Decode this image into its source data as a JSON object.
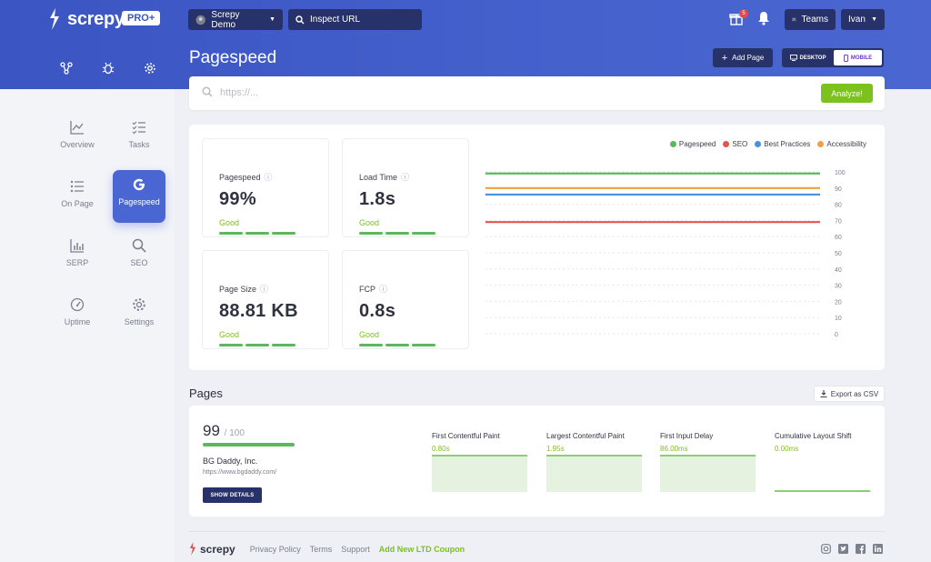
{
  "brand": {
    "name": "screpy",
    "plan": "PRO+"
  },
  "header": {
    "project": "Screpy Demo",
    "inspect_placeholder": "Inspect URL",
    "notifications_count": "5",
    "teams_label": "Teams",
    "user_label": "Ivan"
  },
  "page": {
    "title": "Pagespeed",
    "add_page": "Add Page",
    "device_desktop": "DESKTOP",
    "device_mobile": "MOBILE",
    "url_placeholder": "https://...",
    "analyze": "Analyze!"
  },
  "sidebar": {
    "items": [
      {
        "label": "Overview",
        "icon": "chart-line-icon"
      },
      {
        "label": "Tasks",
        "icon": "checklist-icon"
      },
      {
        "label": "On Page",
        "icon": "list-icon"
      },
      {
        "label": "Pagespeed",
        "icon": "google-g-icon"
      },
      {
        "label": "SERP",
        "icon": "bar-chart-icon"
      },
      {
        "label": "SEO",
        "icon": "search-icon"
      },
      {
        "label": "Uptime",
        "icon": "gauge-icon"
      },
      {
        "label": "Settings",
        "icon": "gear-icon"
      }
    ]
  },
  "metrics": [
    {
      "label": "Pagespeed",
      "value": "99%",
      "status": "Good"
    },
    {
      "label": "Load Time",
      "value": "1.8s",
      "status": "Good"
    },
    {
      "label": "Page Size",
      "value": "88.81 KB",
      "status": "Good"
    },
    {
      "label": "FCP",
      "value": "0.8s",
      "status": "Good"
    }
  ],
  "chart_data": {
    "type": "line",
    "ylim": [
      0,
      100
    ],
    "yticks": [
      0,
      10,
      20,
      30,
      40,
      50,
      60,
      70,
      80,
      90,
      100
    ],
    "legend_position": "top-right",
    "series": [
      {
        "name": "Pagespeed",
        "color": "#5cb85c",
        "values": [
          99,
          99
        ]
      },
      {
        "name": "SEO",
        "color": "#e5534b",
        "values": [
          69,
          69
        ]
      },
      {
        "name": "Best Practices",
        "color": "#4a90e2",
        "values": [
          86,
          86
        ]
      },
      {
        "name": "Accessibility",
        "color": "#f0a040",
        "values": [
          90,
          90
        ]
      }
    ]
  },
  "pages": {
    "title": "Pages",
    "export": "Export as CSV",
    "items": [
      {
        "score": "99",
        "score_max": "/ 100",
        "score_value": 99,
        "name": "BG Daddy, Inc.",
        "url": "https://www.bgdaddy.com/",
        "show_details": "SHOW DETAILS",
        "vitals": [
          {
            "label": "First Contentful Paint",
            "value": "0.80s"
          },
          {
            "label": "Largest Contentful Paint",
            "value": "1.95s"
          },
          {
            "label": "First Input Delay",
            "value": "86.00ms"
          },
          {
            "label": "Cumulative Layout Shift",
            "value": "0.00ms"
          }
        ]
      }
    ]
  },
  "footer": {
    "brand": "screpy",
    "links": [
      "Privacy Policy",
      "Terms",
      "Support"
    ],
    "coupon": "Add New LTD Coupon",
    "socials": [
      "instagram-icon",
      "twitter-icon",
      "facebook-icon",
      "linkedin-icon"
    ]
  },
  "colors": {
    "primary": "#3b55c2",
    "dark": "#263269",
    "good": "#7dc11e"
  }
}
